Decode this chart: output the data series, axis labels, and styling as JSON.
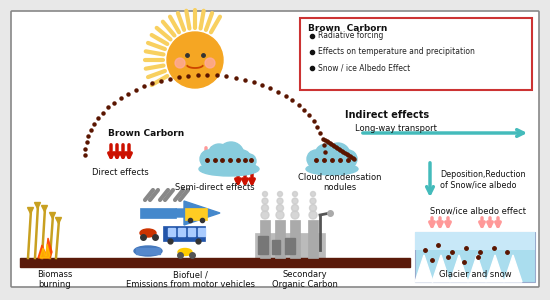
{
  "bg_color": "#e8e8e8",
  "box_bg": "#ffffff",
  "box_border": "#888888",
  "legend_border": "#cc3333",
  "legend_title": "Brown  Carborn",
  "legend_items": [
    "Radiative forcing",
    "Effects on temperature and precipitation",
    "Snow / ice Albedo Effect"
  ],
  "legend_bullet_color": "#111111",
  "brown_carbon_label": "Brown Carborn",
  "direct_effects_label": "Direct effects",
  "semi_direct_label": "Semi-direct effects",
  "indirect_effects_label": "Indirect effects",
  "long_way_label": "Long-way transport",
  "cloud_cond_label": "Cloud condensation\nnodules",
  "deposition_label": "Deposition,Reduction\nof Snow/ice albedo",
  "snow_albedo_label": "Snow/ice albedo effect",
  "biomass_label": "Biomass\nburning",
  "biofuel_label": "Biofuel /\nEmissions from motor vehicles",
  "secondary_label": "Secondary\nOrganic Carbon",
  "glacier_label": "Glacier and snow",
  "sun_color": "#f5a623",
  "sun_face_color": "#f0901a",
  "sun_ray_color": "#f8d060",
  "dot_color": "#5a1500",
  "red_color": "#cc1100",
  "pink_color": "#ff9999",
  "cloud_color": "#88ccdd",
  "teal_color": "#44bbbb",
  "ground_color": "#5a1a0a",
  "glacier_bg": "#aaddee",
  "glacier_mountain": "#c8e8f8",
  "wheat_color": "#c8a020",
  "fire_color": "#ff4400"
}
